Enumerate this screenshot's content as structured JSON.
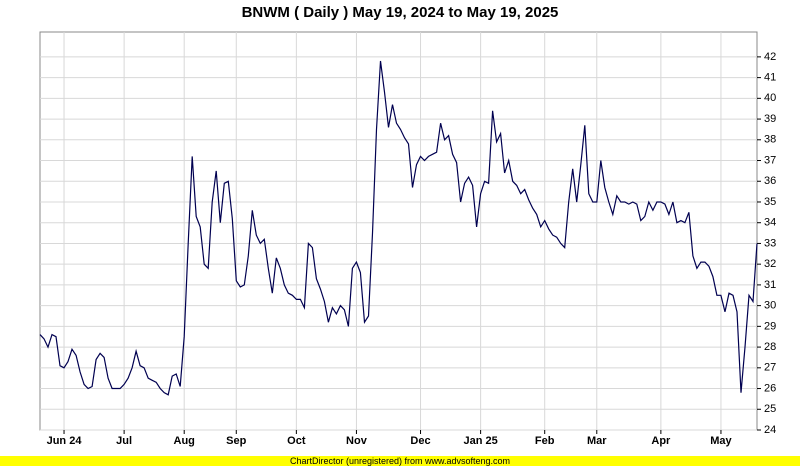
{
  "chart_data": {
    "type": "line",
    "title": "BNWM ( Daily ) May 19, 2024 to May 19, 2025",
    "footer": "ChartDirector (unregistered) from www.advsofteng.com",
    "categories": [
      null,
      null,
      null,
      null,
      null,
      null,
      "Jun 24",
      null,
      null,
      null,
      null,
      null,
      null,
      null,
      null,
      null,
      null,
      null,
      null,
      null,
      null,
      "Jul",
      null,
      null,
      null,
      null,
      null,
      null,
      null,
      null,
      null,
      null,
      null,
      null,
      null,
      null,
      "Aug",
      null,
      null,
      null,
      null,
      null,
      null,
      null,
      null,
      null,
      null,
      null,
      null,
      "Sep",
      null,
      null,
      null,
      null,
      null,
      null,
      null,
      null,
      null,
      null,
      null,
      null,
      null,
      null,
      "Oct",
      null,
      null,
      null,
      null,
      null,
      null,
      null,
      null,
      null,
      null,
      null,
      null,
      null,
      null,
      "Nov",
      null,
      null,
      null,
      null,
      null,
      null,
      null,
      null,
      null,
      null,
      null,
      null,
      null,
      null,
      null,
      "Dec",
      null,
      null,
      null,
      null,
      null,
      null,
      null,
      null,
      null,
      null,
      null,
      null,
      null,
      null,
      "Jan 25",
      null,
      null,
      null,
      null,
      null,
      null,
      null,
      null,
      null,
      null,
      null,
      null,
      null,
      null,
      null,
      "Feb",
      null,
      null,
      null,
      null,
      null,
      null,
      null,
      null,
      null,
      null,
      null,
      null,
      "Mar",
      null,
      null,
      null,
      null,
      null,
      null,
      null,
      null,
      null,
      null,
      null,
      null,
      null,
      null,
      null,
      "Apr",
      null,
      null,
      null,
      null,
      null,
      null,
      null,
      null,
      null,
      null,
      null,
      null,
      null,
      null,
      "May",
      null,
      null,
      null,
      null,
      null,
      null,
      null,
      null,
      null
    ],
    "series": [
      {
        "color": "#000050",
        "values": [
          28.6,
          28.4,
          28.0,
          28.6,
          28.5,
          27.1,
          27.0,
          27.3,
          27.9,
          27.6,
          26.8,
          26.2,
          26.0,
          26.1,
          27.4,
          27.7,
          27.5,
          26.5,
          26.0,
          26.0,
          26.0,
          26.2,
          26.5,
          27.0,
          27.8,
          27.1,
          27.0,
          26.5,
          26.4,
          26.3,
          26.0,
          25.8,
          25.7,
          26.6,
          26.7,
          26.1,
          28.5,
          33.0,
          37.2,
          34.3,
          33.8,
          32.0,
          31.8,
          35.0,
          36.5,
          34.0,
          35.9,
          36.0,
          34.2,
          31.2,
          30.9,
          31.0,
          32.4,
          34.6,
          33.4,
          33.0,
          33.2,
          31.8,
          30.6,
          32.3,
          31.8,
          31.0,
          30.6,
          30.5,
          30.3,
          30.3,
          29.9,
          33.0,
          32.8,
          31.3,
          30.8,
          30.2,
          29.2,
          29.9,
          29.6,
          30.0,
          29.8,
          29.0,
          31.8,
          32.1,
          31.6,
          29.2,
          29.5,
          33.5,
          38.5,
          41.8,
          40.3,
          38.6,
          39.7,
          38.8,
          38.5,
          38.1,
          37.8,
          35.7,
          36.8,
          37.2,
          37.0,
          37.2,
          37.3,
          37.4,
          38.8,
          38.0,
          38.2,
          37.3,
          36.9,
          35.0,
          35.9,
          36.2,
          35.8,
          33.8,
          35.4,
          36.0,
          35.9,
          39.4,
          37.9,
          38.3,
          36.4,
          37.0,
          36.0,
          35.8,
          35.4,
          35.6,
          35.1,
          34.7,
          34.4,
          33.8,
          34.1,
          33.7,
          33.4,
          33.3,
          33.0,
          32.8,
          35.0,
          36.6,
          35.0,
          36.8,
          38.7,
          35.4,
          35.0,
          35.0,
          37.0,
          35.7,
          35.0,
          34.4,
          35.3,
          35.0,
          35.0,
          34.9,
          35.0,
          34.9,
          34.1,
          34.3,
          35.0,
          34.6,
          35.0,
          35.0,
          34.9,
          34.4,
          35.0,
          34.0,
          34.1,
          34.0,
          34.5,
          32.4,
          31.8,
          32.1,
          32.1,
          31.9,
          31.4,
          30.5,
          30.5,
          29.7,
          30.6,
          30.5,
          29.7,
          25.8,
          28.0,
          30.5,
          30.2,
          33.0
        ]
      }
    ],
    "ylim": [
      24,
      43.2
    ],
    "yticks": [
      24,
      25,
      26,
      27,
      28,
      29,
      30,
      31,
      32,
      33,
      34,
      35,
      36,
      37,
      38,
      39,
      40,
      41,
      42
    ],
    "y_axis_side": "right",
    "grid": true
  }
}
